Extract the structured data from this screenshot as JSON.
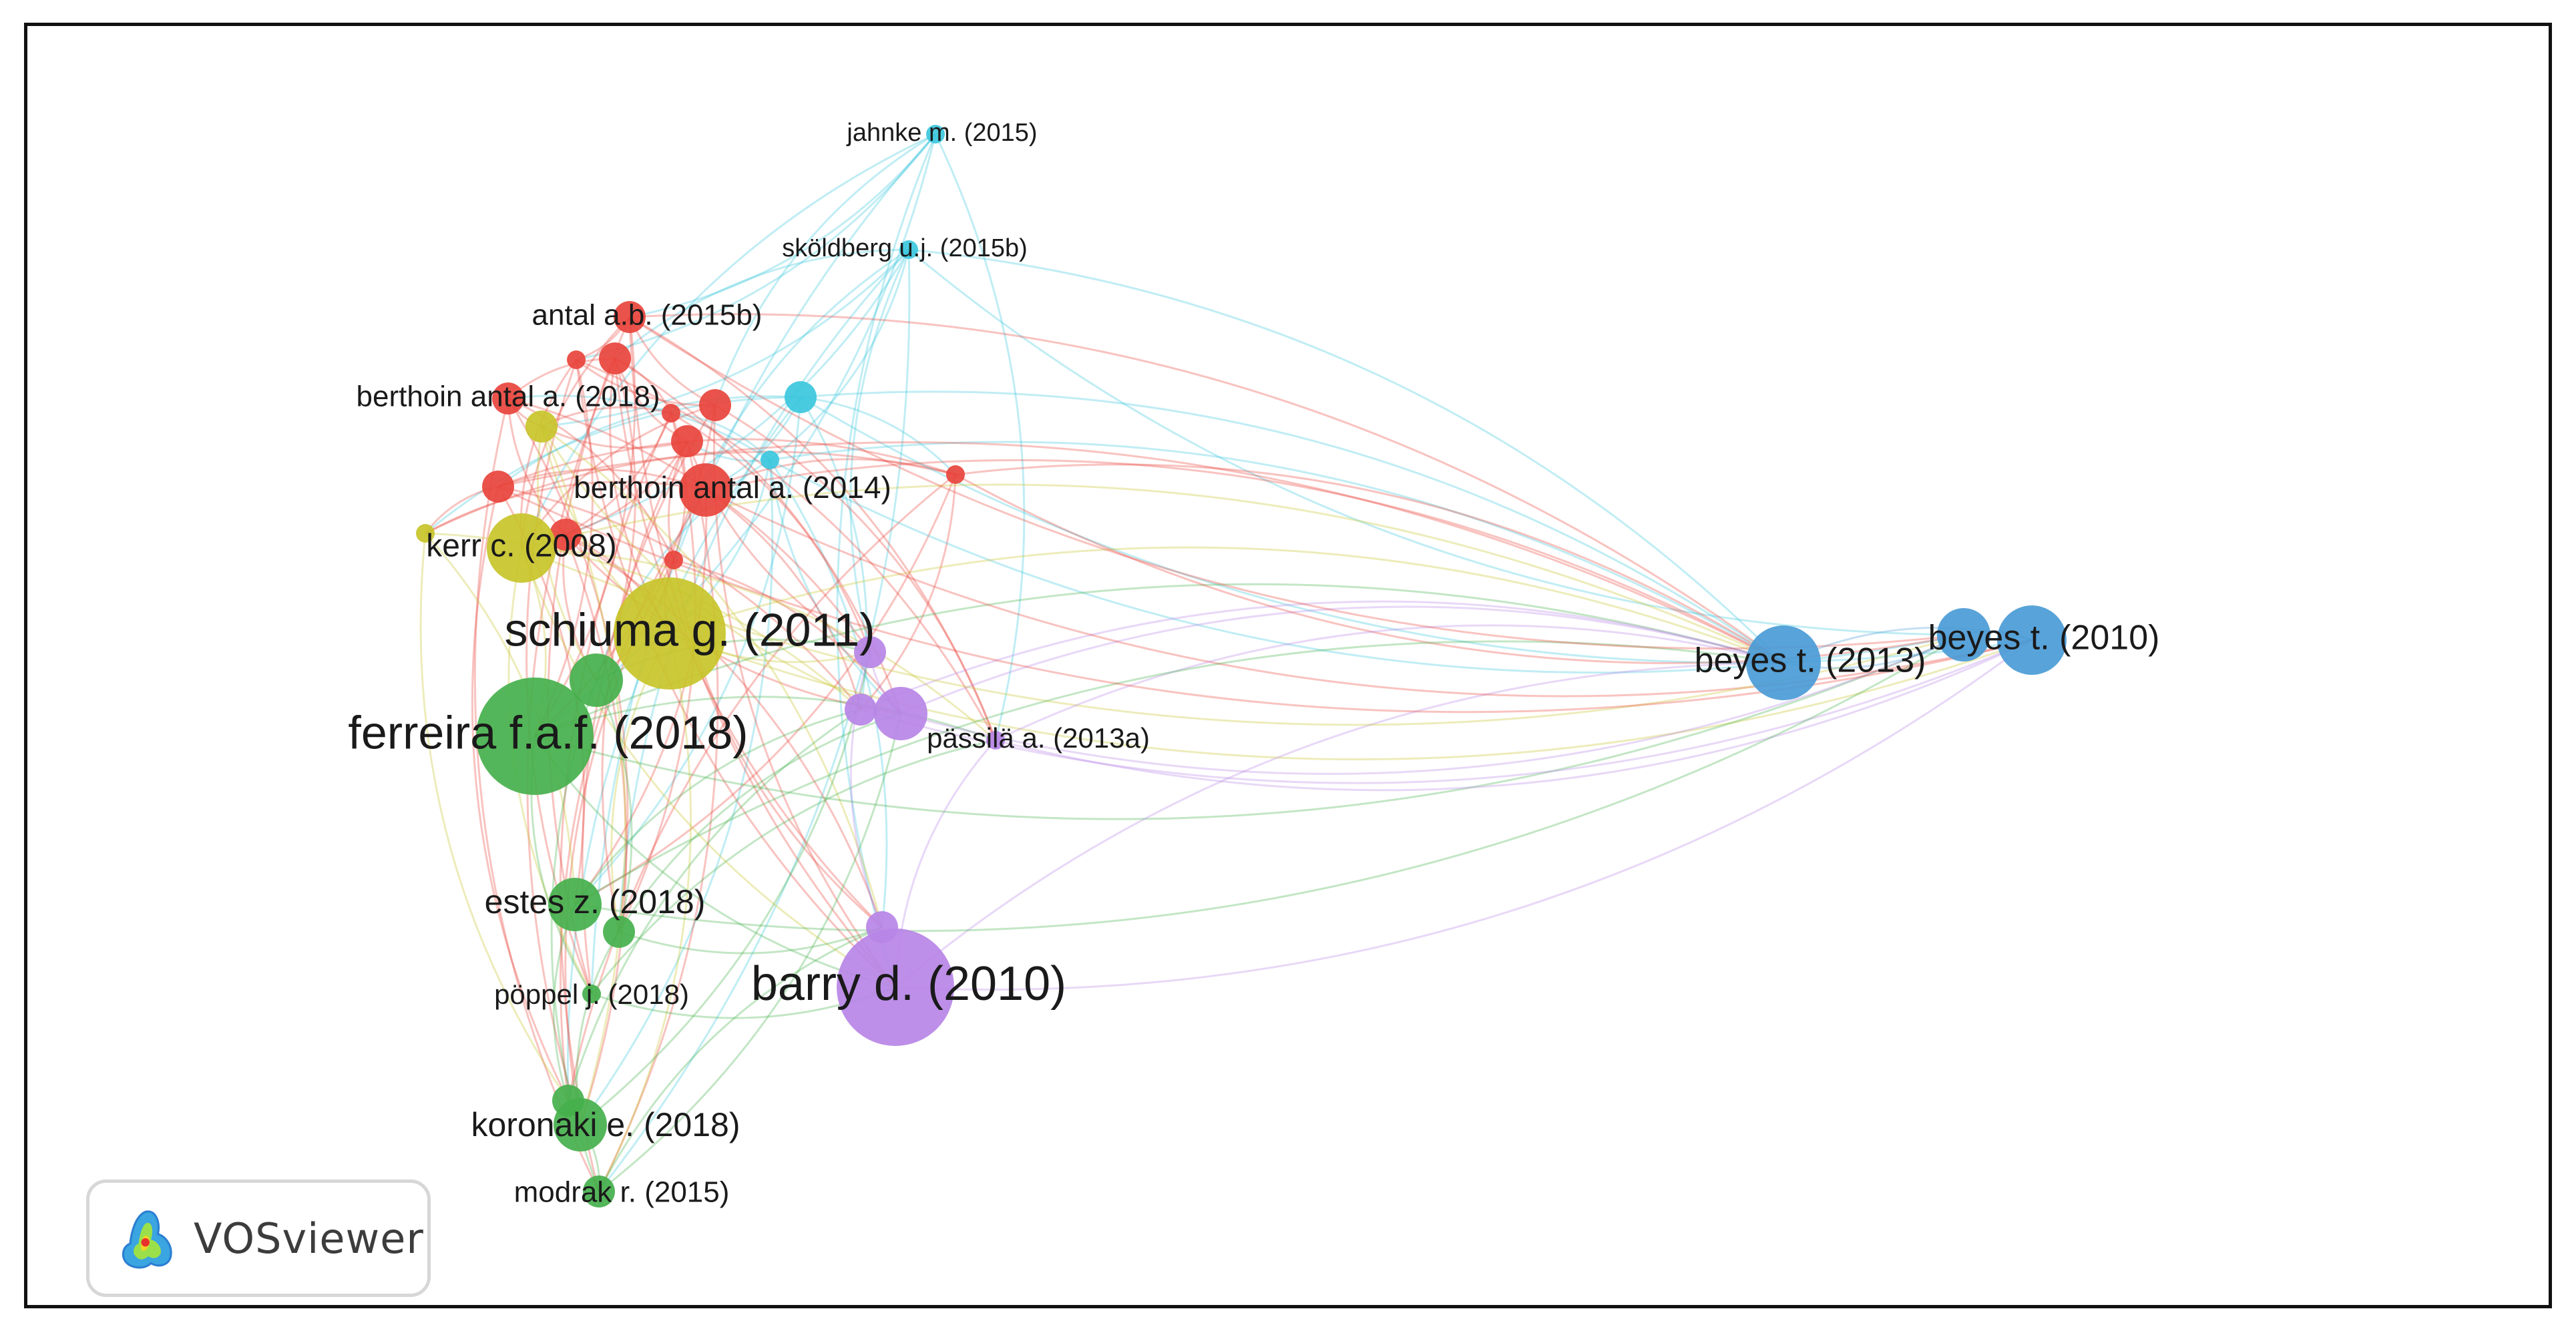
{
  "network": {
    "clusters": {
      "red": "#e8443c",
      "green": "#45b04c",
      "blue": "#4a9bd6",
      "yellow": "#c8c42a",
      "purple": "#b786e6",
      "cyan": "#3cc7dd"
    },
    "nodes": [
      {
        "id": "jahnke",
        "label": "jahnke m. (2015)",
        "cluster": "cyan",
        "weight": 1
      },
      {
        "id": "skoldberg",
        "label": "sköldberg u.j. (2015b)",
        "cluster": "cyan",
        "weight": 1
      },
      {
        "id": "cyan3",
        "label": "",
        "cluster": "cyan",
        "weight": 2
      },
      {
        "id": "cyan4",
        "label": "",
        "cluster": "cyan",
        "weight": 1
      },
      {
        "id": "antal2015b",
        "label": "antal a.b. (2015b)",
        "cluster": "red",
        "weight": 2
      },
      {
        "id": "berthoin2018",
        "label": "berthoin antal a. (2018)",
        "cluster": "red",
        "weight": 2
      },
      {
        "id": "berthoin2014",
        "label": "berthoin antal a. (2014)",
        "cluster": "red",
        "weight": 3
      },
      {
        "id": "red4",
        "label": "",
        "cluster": "red",
        "weight": 2
      },
      {
        "id": "red5",
        "label": "",
        "cluster": "red",
        "weight": 2
      },
      {
        "id": "red6",
        "label": "",
        "cluster": "red",
        "weight": 2
      },
      {
        "id": "red7",
        "label": "",
        "cluster": "red",
        "weight": 2
      },
      {
        "id": "red8",
        "label": "",
        "cluster": "red",
        "weight": 2
      },
      {
        "id": "red9",
        "label": "",
        "cluster": "red",
        "weight": 1
      },
      {
        "id": "red10",
        "label": "",
        "cluster": "red",
        "weight": 1
      },
      {
        "id": "red11",
        "label": "",
        "cluster": "red",
        "weight": 1
      },
      {
        "id": "red12",
        "label": "",
        "cluster": "red",
        "weight": 1
      },
      {
        "id": "kerr",
        "label": "kerr c. (2008)",
        "cluster": "yellow",
        "weight": 4
      },
      {
        "id": "schiuma",
        "label": "schiuma g. (2011)",
        "cluster": "yellow",
        "weight": 9
      },
      {
        "id": "yellow3",
        "label": "",
        "cluster": "yellow",
        "weight": 1
      },
      {
        "id": "yellow4",
        "label": "",
        "cluster": "yellow",
        "weight": 2
      },
      {
        "id": "ferreira",
        "label": "ferreira f.a.f. (2018)",
        "cluster": "green",
        "weight": 10
      },
      {
        "id": "green2",
        "label": "",
        "cluster": "green",
        "weight": 3
      },
      {
        "id": "estes",
        "label": "estes z. (2018)",
        "cluster": "green",
        "weight": 3
      },
      {
        "id": "green4",
        "label": "",
        "cluster": "green",
        "weight": 2
      },
      {
        "id": "poppel",
        "label": "pöppel j. (2018)",
        "cluster": "green",
        "weight": 1
      },
      {
        "id": "koronaki",
        "label": "koronaki e. (2018)",
        "cluster": "green",
        "weight": 3
      },
      {
        "id": "green7",
        "label": "",
        "cluster": "green",
        "weight": 2
      },
      {
        "id": "modrak",
        "label": "modrak r. (2015)",
        "cluster": "green",
        "weight": 2
      },
      {
        "id": "passila",
        "label": "pässilä a. (2013a)",
        "cluster": "purple",
        "weight": 1
      },
      {
        "id": "purple2",
        "label": "",
        "cluster": "purple",
        "weight": 3
      },
      {
        "id": "purple3",
        "label": "",
        "cluster": "purple",
        "weight": 2
      },
      {
        "id": "purple4",
        "label": "",
        "cluster": "purple",
        "weight": 2
      },
      {
        "id": "barry",
        "label": "barry d. (2010)",
        "cluster": "purple",
        "weight": 10
      },
      {
        "id": "purple6",
        "label": "",
        "cluster": "purple",
        "weight": 2
      },
      {
        "id": "beyes2013",
        "label": "beyes t. (2013)",
        "cluster": "blue",
        "weight": 5
      },
      {
        "id": "beyes2010",
        "label": "beyes t. (2010)",
        "cluster": "blue",
        "weight": 4
      },
      {
        "id": "blue3",
        "label": "",
        "cluster": "blue",
        "weight": 3
      }
    ]
  },
  "logo": {
    "text": "VOSviewer",
    "icon": "vosviewer-logo-icon"
  }
}
